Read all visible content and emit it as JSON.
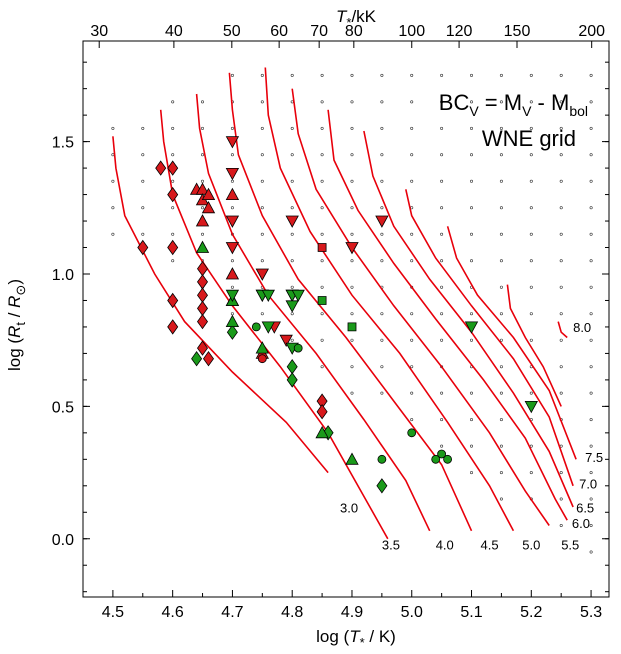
{
  "chart_data": {
    "type": "scatter",
    "title": "",
    "annotation": {
      "lhs": "BC",
      "lhs_sub": "V",
      "eq": " = M",
      "m_sub": "V",
      "minus": " - M",
      "bol_sub": "bol",
      "line2": "WNE grid"
    },
    "xlabel": {
      "pre": "log (",
      "var": "T",
      "sub": "*",
      "post": " / K)"
    },
    "ylabel": {
      "pre": "log (",
      "var": "R",
      "sub": "t",
      "mid": " / ",
      "var2": "R",
      "sub2": "⊙",
      "post": ")"
    },
    "top_label": {
      "var": "T",
      "sub": "*",
      "post": "/kK"
    },
    "xlim": [
      4.45,
      5.33
    ],
    "ylim": [
      -0.22,
      1.88
    ],
    "xticks": [
      4.5,
      4.6,
      4.7,
      4.8,
      4.9,
      5.0,
      5.1,
      5.2,
      5.3
    ],
    "xtick_labels": [
      "4.5",
      "4.6",
      "4.7",
      "4.8",
      "4.9",
      "5.0",
      "5.1",
      "5.2",
      "5.3"
    ],
    "yticks": [
      0.0,
      0.5,
      1.0,
      1.5
    ],
    "ytick_labels": [
      "0.0",
      "0.5",
      "1.0",
      "1.5"
    ],
    "top_ticks": [
      30,
      40,
      50,
      60,
      70,
      80,
      100,
      120,
      150,
      200
    ],
    "top_tick_labels": [
      "30",
      "40",
      "50",
      "60",
      "70",
      "80",
      "100",
      "120",
      "150",
      "200"
    ],
    "colors": {
      "contour": "#e8000b",
      "red": "#d7191c",
      "green": "#1a9a1a",
      "grid": "#000000"
    },
    "contours": [
      {
        "label": "3.0",
        "label_at": [
          4.88,
          0.1
        ],
        "points": [
          [
            4.5,
            1.52
          ],
          [
            4.505,
            1.4
          ],
          [
            4.52,
            1.22
          ],
          [
            4.57,
            1.0
          ],
          [
            4.62,
            0.82
          ],
          [
            4.7,
            0.63
          ],
          [
            4.79,
            0.44
          ],
          [
            4.86,
            0.25
          ]
        ]
      },
      {
        "label": "3.5",
        "label_at": [
          4.95,
          -0.04
        ],
        "points": [
          [
            4.58,
            1.62
          ],
          [
            4.585,
            1.5
          ],
          [
            4.6,
            1.3
          ],
          [
            4.64,
            1.08
          ],
          [
            4.7,
            0.88
          ],
          [
            4.78,
            0.65
          ],
          [
            4.86,
            0.4
          ],
          [
            4.93,
            0.12
          ],
          [
            4.96,
            0.0
          ]
        ]
      },
      {
        "label": "4.0",
        "label_at": [
          5.04,
          -0.04
        ],
        "points": [
          [
            4.64,
            1.68
          ],
          [
            4.645,
            1.55
          ],
          [
            4.66,
            1.38
          ],
          [
            4.7,
            1.15
          ],
          [
            4.76,
            0.92
          ],
          [
            4.84,
            0.7
          ],
          [
            4.92,
            0.45
          ],
          [
            4.99,
            0.22
          ],
          [
            5.03,
            0.03
          ]
        ]
      },
      {
        "label": "4.5",
        "label_at": [
          5.115,
          -0.04
        ],
        "points": [
          [
            4.695,
            1.76
          ],
          [
            4.7,
            1.62
          ],
          [
            4.71,
            1.45
          ],
          [
            4.75,
            1.22
          ],
          [
            4.81,
            0.98
          ],
          [
            4.89,
            0.76
          ],
          [
            4.97,
            0.52
          ],
          [
            5.05,
            0.28
          ],
          [
            5.1,
            0.03
          ]
        ]
      },
      {
        "label": "5.0",
        "label_at": [
          5.185,
          -0.04
        ],
        "points": [
          [
            4.755,
            1.78
          ],
          [
            4.76,
            1.6
          ],
          [
            4.78,
            1.4
          ],
          [
            4.83,
            1.16
          ],
          [
            4.9,
            0.92
          ],
          [
            4.98,
            0.7
          ],
          [
            5.06,
            0.44
          ],
          [
            5.13,
            0.2
          ],
          [
            5.17,
            0.03
          ]
        ]
      },
      {
        "label": "5.5",
        "label_at": [
          5.25,
          -0.04
        ],
        "points": [
          [
            4.8,
            1.7
          ],
          [
            4.81,
            1.53
          ],
          [
            4.84,
            1.32
          ],
          [
            4.9,
            1.1
          ],
          [
            4.97,
            0.88
          ],
          [
            5.05,
            0.65
          ],
          [
            5.13,
            0.4
          ],
          [
            5.19,
            0.18
          ],
          [
            5.23,
            0.05
          ]
        ]
      },
      {
        "label": "6.0",
        "label_at": [
          5.268,
          0.04
        ],
        "points": [
          [
            4.86,
            1.62
          ],
          [
            4.87,
            1.43
          ],
          [
            4.91,
            1.24
          ],
          [
            4.97,
            1.04
          ],
          [
            5.04,
            0.83
          ],
          [
            5.12,
            0.6
          ],
          [
            5.19,
            0.38
          ],
          [
            5.24,
            0.15
          ],
          [
            5.26,
            0.07
          ]
        ]
      },
      {
        "label": "6.5",
        "label_at": [
          5.275,
          0.1
        ],
        "points": [
          [
            4.92,
            1.54
          ],
          [
            4.935,
            1.37
          ],
          [
            4.97,
            1.18
          ],
          [
            5.03,
            0.98
          ],
          [
            5.1,
            0.78
          ],
          [
            5.17,
            0.55
          ],
          [
            5.23,
            0.33
          ],
          [
            5.27,
            0.12
          ]
        ]
      },
      {
        "label": "7.0",
        "label_at": [
          5.28,
          0.19
        ],
        "points": [
          [
            4.99,
            1.32
          ],
          [
            5.0,
            1.22
          ],
          [
            5.04,
            1.06
          ],
          [
            5.1,
            0.88
          ],
          [
            5.17,
            0.68
          ],
          [
            5.23,
            0.46
          ],
          [
            5.27,
            0.2
          ]
        ]
      },
      {
        "label": "7.5",
        "label_at": [
          5.29,
          0.29
        ],
        "points": [
          [
            5.06,
            1.18
          ],
          [
            5.075,
            1.06
          ],
          [
            5.11,
            0.92
          ],
          [
            5.17,
            0.76
          ],
          [
            5.23,
            0.56
          ],
          [
            5.275,
            0.3
          ]
        ]
      },
      {
        "label": "8.0",
        "label_at": [
          5.27,
          0.78
        ],
        "points": [
          [
            5.16,
            0.96
          ],
          [
            5.165,
            0.87
          ],
          [
            5.19,
            0.76
          ],
          [
            5.22,
            0.65
          ],
          [
            5.25,
            0.5
          ]
        ]
      },
      {
        "label": "",
        "label_at": null,
        "points": [
          [
            5.245,
            0.82
          ],
          [
            5.25,
            0.78
          ],
          [
            5.26,
            0.76
          ]
        ]
      }
    ],
    "series": [
      {
        "color": "red",
        "marker": "diamond",
        "points": [
          [
            4.55,
            1.1
          ],
          [
            4.58,
            1.4
          ],
          [
            4.6,
            1.4
          ],
          [
            4.6,
            1.3
          ],
          [
            4.6,
            1.1
          ],
          [
            4.6,
            0.9
          ],
          [
            4.6,
            0.8
          ],
          [
            4.65,
            1.02
          ],
          [
            4.65,
            0.97
          ],
          [
            4.65,
            0.92
          ],
          [
            4.65,
            0.87
          ],
          [
            4.65,
            0.82
          ],
          [
            4.65,
            0.72
          ],
          [
            4.66,
            0.68
          ],
          [
            4.85,
            0.52
          ],
          [
            4.85,
            0.48
          ]
        ]
      },
      {
        "color": "red",
        "marker": "triangle-up",
        "points": [
          [
            4.64,
            1.32
          ],
          [
            4.65,
            1.32
          ],
          [
            4.65,
            1.28
          ],
          [
            4.65,
            1.2
          ],
          [
            4.66,
            1.3
          ],
          [
            4.66,
            1.25
          ],
          [
            4.7,
            1.3
          ],
          [
            4.7,
            1.0
          ],
          [
            4.7,
            0.9
          ],
          [
            4.75,
            0.7
          ]
        ]
      },
      {
        "color": "red",
        "marker": "triangle-down",
        "points": [
          [
            4.9,
            1.1
          ],
          [
            4.95,
            1.2
          ]
        ]
      },
      {
        "color": "red",
        "marker": "square",
        "points": [
          [
            4.85,
            1.1
          ]
        ]
      },
      {
        "color": "red",
        "marker": "circle",
        "points": [
          [
            4.75,
            0.68
          ]
        ]
      },
      {
        "color": "red-dark",
        "marker": "triangle-down",
        "points": [
          [
            4.7,
            1.5
          ],
          [
            4.7,
            1.38
          ],
          [
            4.7,
            1.2
          ],
          [
            4.7,
            1.1
          ],
          [
            4.75,
            1.0
          ],
          [
            4.8,
            1.2
          ],
          [
            4.8,
            0.92
          ],
          [
            4.75,
            0.92
          ],
          [
            4.77,
            0.8
          ],
          [
            4.79,
            0.75
          ]
        ]
      },
      {
        "color": "green",
        "marker": "diamond",
        "points": [
          [
            4.64,
            0.68
          ],
          [
            4.7,
            0.78
          ],
          [
            4.8,
            0.65
          ],
          [
            4.8,
            0.6
          ],
          [
            4.86,
            0.4
          ],
          [
            4.95,
            0.2
          ]
        ]
      },
      {
        "color": "green",
        "marker": "triangle-up",
        "points": [
          [
            4.65,
            1.1
          ],
          [
            4.7,
            0.9
          ],
          [
            4.7,
            0.82
          ],
          [
            4.75,
            0.72
          ],
          [
            4.85,
            0.4
          ],
          [
            4.9,
            0.3
          ]
        ]
      },
      {
        "color": "green",
        "marker": "triangle-down",
        "points": [
          [
            4.7,
            0.92
          ],
          [
            4.75,
            0.92
          ],
          [
            4.76,
            0.92
          ],
          [
            4.8,
            0.92
          ],
          [
            4.81,
            0.92
          ],
          [
            4.76,
            0.8
          ],
          [
            4.8,
            0.72
          ],
          [
            4.8,
            0.88
          ],
          [
            5.1,
            0.8
          ],
          [
            5.2,
            0.5
          ]
        ]
      },
      {
        "color": "green",
        "marker": "square",
        "points": [
          [
            4.85,
            0.9
          ],
          [
            4.9,
            0.8
          ]
        ]
      },
      {
        "color": "green",
        "marker": "circle",
        "points": [
          [
            4.74,
            0.8
          ],
          [
            4.81,
            0.72
          ],
          [
            4.95,
            0.3
          ],
          [
            5.0,
            0.4
          ],
          [
            5.05,
            0.32
          ],
          [
            5.04,
            0.3
          ],
          [
            5.06,
            0.3
          ]
        ]
      }
    ]
  }
}
